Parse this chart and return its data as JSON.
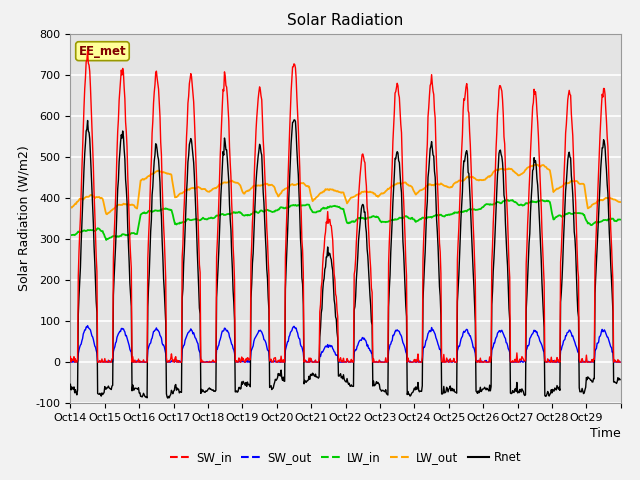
{
  "title": "Solar Radiation",
  "ylabel": "Solar Radiation (W/m2)",
  "xlabel": "Time",
  "ylim": [
    -100,
    800
  ],
  "tick_labels": [
    "Oct 14",
    "Oct 15",
    "Oct 16",
    "Oct 17",
    "Oct 18",
    "Oct 19",
    "Oct 20",
    "Oct 21",
    "Oct 22",
    "Oct 23",
    "Oct 24",
    "Oct 25",
    "Oct 26",
    "Oct 27",
    "Oct 28",
    "Oct 29"
  ],
  "yticks": [
    -100,
    0,
    100,
    200,
    300,
    400,
    500,
    600,
    700,
    800
  ],
  "colors": {
    "SW_in": "#ff0000",
    "SW_out": "#0000ff",
    "LW_in": "#00cc00",
    "LW_out": "#ffa500",
    "Rnet": "#000000"
  },
  "watermark": "EE_met",
  "title_fontsize": 11,
  "label_fontsize": 9,
  "tick_fontsize": 8
}
